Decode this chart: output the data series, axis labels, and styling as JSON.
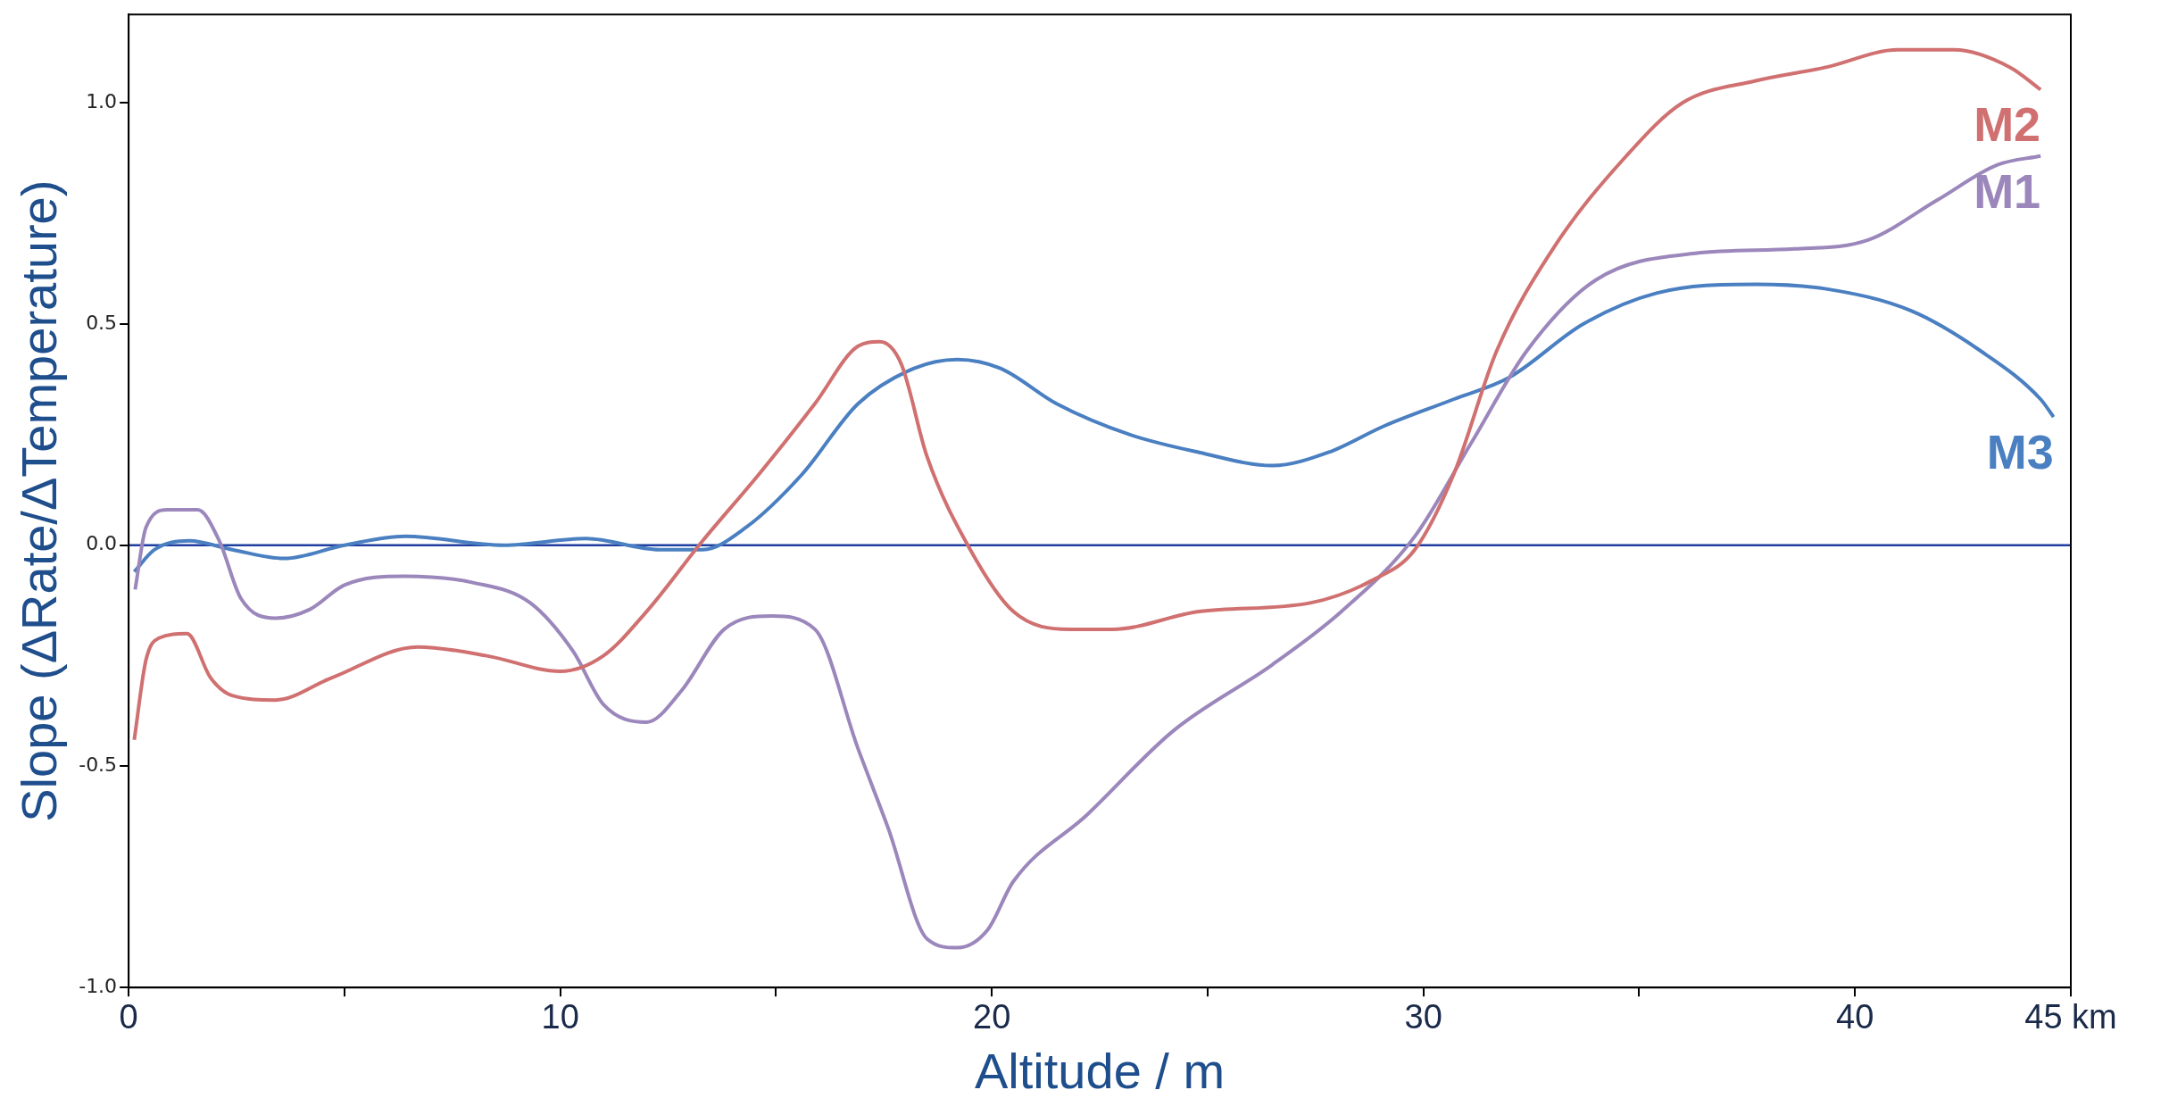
{
  "chart_data": {
    "type": "line",
    "xlabel": "Altitude / m",
    "ylabel": "Slope (ΔRate/ΔTemperature)",
    "xlim": [
      0,
      45
    ],
    "ylim": [
      -1,
      1.2
    ],
    "xticks": [
      0,
      {
        "value": 5,
        "label": null
      },
      10,
      {
        "value": 15,
        "label": null
      },
      20,
      {
        "value": 25,
        "label": null
      },
      30,
      {
        "value": 35,
        "label": null
      },
      40,
      {
        "value": 45,
        "label": "45 km"
      }
    ],
    "yticks": [
      {
        "value": -1,
        "label": "-1.0"
      },
      {
        "value": -0.5,
        "label": "-0.5"
      },
      {
        "value": 0,
        "label": "0.0"
      },
      {
        "value": 0.5,
        "label": "0.5"
      },
      {
        "value": 1,
        "label": "1.0"
      }
    ],
    "grid": false,
    "legend": false,
    "ref_lines": [
      {
        "axis": "y",
        "value": 0,
        "color": "#1f3fa0"
      }
    ],
    "series": [
      {
        "name": "M2",
        "color": "#d07070",
        "x": [
          0.13,
          0.4,
          0.7,
          1.35,
          1.9,
          2.4,
          3.4,
          4.7,
          6.7,
          8.3,
          10,
          11,
          12,
          13.3,
          14.6,
          15.9,
          16.9,
          17.4,
          17.9,
          18.5,
          19.5,
          20.5,
          21.8,
          22.8,
          24.8,
          27.4,
          28.8,
          29.8,
          30.7,
          31.7,
          33,
          34.7,
          36,
          37.7,
          39.3,
          41,
          42.3,
          43.6,
          44.3
        ],
        "values": [
          -0.44,
          -0.26,
          -0.21,
          -0.2,
          -0.3,
          -0.34,
          -0.35,
          -0.3,
          -0.23,
          -0.25,
          -0.285,
          -0.25,
          -0.15,
          0.01,
          0.16,
          0.32,
          0.45,
          0.46,
          0.41,
          0.2,
          -0.01,
          -0.15,
          -0.19,
          -0.19,
          -0.15,
          -0.13,
          -0.08,
          -0.01,
          0.16,
          0.44,
          0.67,
          0.88,
          1.0,
          1.05,
          1.08,
          1.12,
          1.12,
          1.08,
          1.03
        ]
      },
      {
        "name": "M1",
        "color": "#9b87bb",
        "x": [
          0.15,
          0.4,
          0.9,
          1.6,
          2.1,
          2.6,
          3.4,
          4.2,
          5,
          6.4,
          8,
          9.3,
          10.3,
          11,
          12,
          12.8,
          13.8,
          14.9,
          15.9,
          16.9,
          17.6,
          18.5,
          19.2,
          19.9,
          20.5,
          22.2,
          24.2,
          26.5,
          28.1,
          29.8,
          31.1,
          32.4,
          34,
          36.3,
          38.6,
          40.3,
          41.9,
          43.3,
          44.3
        ],
        "values": [
          -0.1,
          0.04,
          0.08,
          0.08,
          0.01,
          -0.12,
          -0.165,
          -0.145,
          -0.09,
          -0.07,
          -0.085,
          -0.13,
          -0.24,
          -0.36,
          -0.4,
          -0.33,
          -0.19,
          -0.16,
          -0.19,
          -0.46,
          -0.64,
          -0.89,
          -0.91,
          -0.87,
          -0.76,
          -0.61,
          -0.42,
          -0.27,
          -0.15,
          0.02,
          0.23,
          0.44,
          0.6,
          0.66,
          0.67,
          0.69,
          0.78,
          0.86,
          0.88
        ]
      },
      {
        "name": "M3",
        "color": "#4a7fc1",
        "x": [
          0.13,
          0.6,
          1.4,
          2.4,
          3.6,
          5,
          6.4,
          8.7,
          10.6,
          12.3,
          13.3,
          14.3,
          15.6,
          16.9,
          18.2,
          19.2,
          20.2,
          21.5,
          23.2,
          24.8,
          26.5,
          27.8,
          29.1,
          30.7,
          32,
          33.7,
          35.4,
          37.7,
          39.3,
          41.3,
          42.9,
          44.3,
          44.6
        ],
        "values": [
          -0.06,
          -0.01,
          0.01,
          -0.01,
          -0.03,
          0,
          0.02,
          0,
          0.015,
          -0.01,
          -0.01,
          0.04,
          0.16,
          0.32,
          0.4,
          0.42,
          0.4,
          0.32,
          0.25,
          0.21,
          0.18,
          0.21,
          0.27,
          0.33,
          0.38,
          0.5,
          0.57,
          0.59,
          0.58,
          0.53,
          0.44,
          0.33,
          0.29
        ]
      }
    ]
  }
}
